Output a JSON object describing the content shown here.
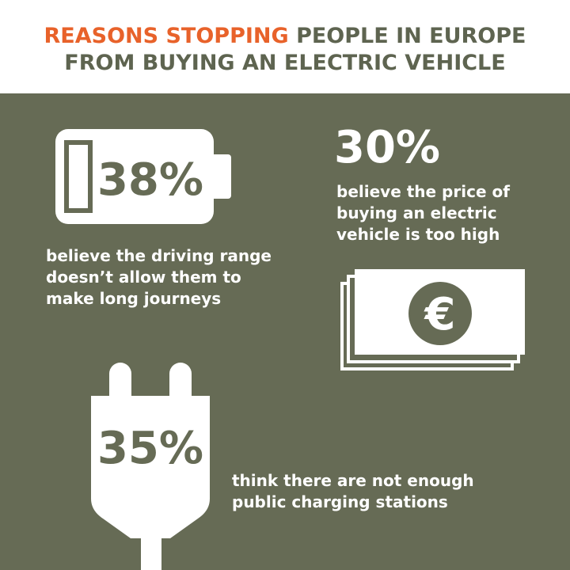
{
  "header": {
    "title_highlight": "REASONS STOPPING",
    "title_line1_rest": "PEOPLE IN EUROPE",
    "title_line2": "FROM BUYING AN ELECTRIC VEHICLE"
  },
  "stats": [
    {
      "value": "38%",
      "lines": [
        "believe the driving range",
        "doesn’t allow them to",
        "make long journeys"
      ]
    },
    {
      "value": "30%",
      "lines": [
        "believe the price of",
        "buying an electric",
        "vehicle is too high"
      ]
    },
    {
      "value": "35%",
      "lines": [
        "think there are not enough",
        "public charging stations"
      ]
    }
  ],
  "icons": {
    "currency": "€"
  }
}
